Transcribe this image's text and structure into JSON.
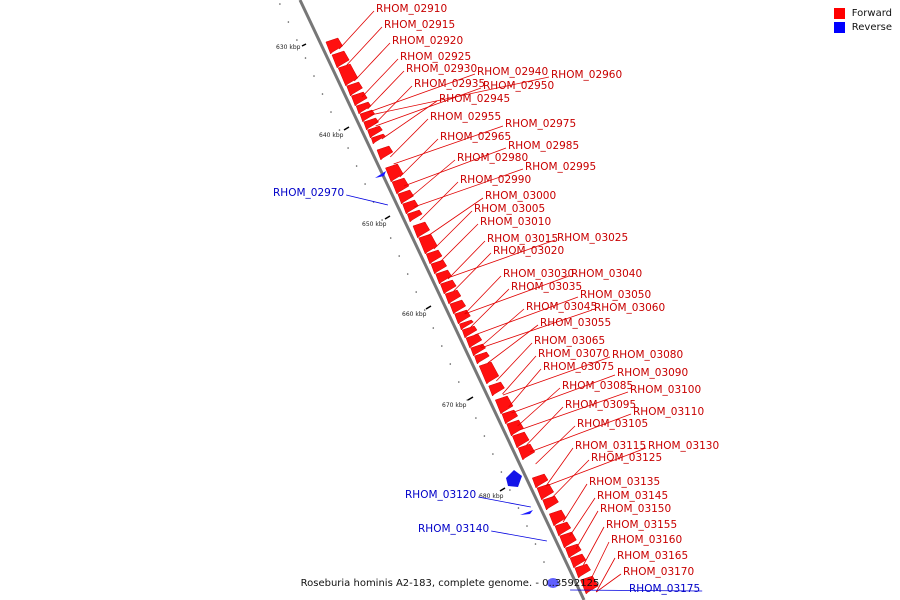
{
  "legend": {
    "forward_label": "Forward",
    "reverse_label": "Reverse",
    "forward_color": "#ff0000",
    "reverse_color": "#0000ff"
  },
  "caption": "Roseburia hominis A2-183, complete genome. - 0..3592125",
  "scale": {
    "ticks": [
      "630 kbp",
      "640 kbp",
      "650 kbp",
      "660 kbp",
      "670 kbp",
      "680 kbp"
    ]
  },
  "genes": {
    "forward": [
      "RHOM_02910",
      "RHOM_02915",
      "RHOM_02920",
      "RHOM_02925",
      "RHOM_02930",
      "RHOM_02935",
      "RHOM_02940",
      "RHOM_02945",
      "RHOM_02950",
      "RHOM_02955",
      "RHOM_02960",
      "RHOM_02965",
      "RHOM_02975",
      "RHOM_02980",
      "RHOM_02985",
      "RHOM_02990",
      "RHOM_02995",
      "RHOM_03000",
      "RHOM_03005",
      "RHOM_03010",
      "RHOM_03015",
      "RHOM_03020",
      "RHOM_03025",
      "RHOM_03030",
      "RHOM_03035",
      "RHOM_03040",
      "RHOM_03045",
      "RHOM_03050",
      "RHOM_03055",
      "RHOM_03060",
      "RHOM_03065",
      "RHOM_03070",
      "RHOM_03075",
      "RHOM_03080",
      "RHOM_03085",
      "RHOM_03090",
      "RHOM_03095",
      "RHOM_03100",
      "RHOM_03105",
      "RHOM_03110",
      "RHOM_03115",
      "RHOM_03125",
      "RHOM_03130",
      "RHOM_03135",
      "RHOM_03145",
      "RHOM_03150",
      "RHOM_03155",
      "RHOM_03160",
      "RHOM_03165",
      "RHOM_03170"
    ],
    "reverse": [
      "RHOM_02970",
      "RHOM_03120",
      "RHOM_03140",
      "RHOM_03175"
    ]
  }
}
